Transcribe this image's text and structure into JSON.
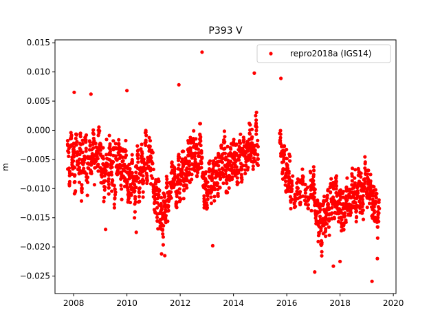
{
  "chart_data": {
    "type": "scatter",
    "title": "P393 V",
    "xlabel": "",
    "ylabel": "m",
    "xlim": [
      2007.3,
      2020.1
    ],
    "ylim": [
      -0.028,
      0.0155
    ],
    "xticks": [
      2008,
      2010,
      2012,
      2014,
      2016,
      2018,
      2020
    ],
    "yticks": [
      -0.025,
      -0.02,
      -0.015,
      -0.01,
      -0.005,
      0.0,
      0.005,
      0.01,
      0.015
    ],
    "ytick_labels": [
      "−0.025",
      "−0.020",
      "−0.015",
      "−0.010",
      "−0.005",
      "0.000",
      "0.005",
      "0.010",
      "0.015"
    ],
    "grid": false,
    "legend_position": "top-right",
    "series": [
      {
        "name": "repro2018a (IGS14)",
        "color": "#ff0000",
        "marker": "circle",
        "x": [
          2007.8,
          2007.85,
          2007.9,
          2007.95,
          2008.0,
          2008.05,
          2008.1,
          2008.15,
          2008.2,
          2008.25,
          2008.3,
          2008.35,
          2008.4,
          2008.45,
          2008.5,
          2008.55,
          2008.6,
          2008.65,
          2008.7,
          2008.75,
          2008.8,
          2008.85,
          2008.9,
          2008.95,
          2009.0,
          2009.05,
          2009.1,
          2009.15,
          2009.2,
          2009.25,
          2009.3,
          2009.35,
          2009.4,
          2009.45,
          2009.5,
          2009.55,
          2009.6,
          2009.65,
          2009.7,
          2009.75,
          2009.8,
          2009.85,
          2009.9,
          2009.95,
          2010.0,
          2010.05,
          2010.1,
          2010.15,
          2010.2,
          2010.25,
          2010.3,
          2010.35,
          2010.4,
          2010.45,
          2010.5,
          2010.55,
          2010.6,
          2010.65,
          2010.7,
          2010.75,
          2010.8,
          2010.85,
          2010.9,
          2010.95,
          2011.0,
          2011.05,
          2011.1,
          2011.15,
          2011.2,
          2011.25,
          2011.3,
          2011.35,
          2011.4,
          2011.45,
          2011.5,
          2011.55,
          2011.6,
          2011.65,
          2011.7,
          2011.75,
          2011.8,
          2011.85,
          2011.9,
          2011.95,
          2012.0,
          2012.05,
          2012.1,
          2012.15,
          2012.2,
          2012.25,
          2012.3,
          2012.35,
          2012.4,
          2012.45,
          2012.5,
          2012.55,
          2012.6,
          2012.65,
          2012.7,
          2012.75,
          2012.8,
          2012.85,
          2012.9,
          2012.95,
          2013.0,
          2013.05,
          2013.1,
          2013.15,
          2013.2,
          2013.25,
          2013.3,
          2013.35,
          2013.4,
          2013.45,
          2013.5,
          2013.55,
          2013.6,
          2013.65,
          2013.7,
          2013.75,
          2013.8,
          2013.85,
          2013.9,
          2013.95,
          2014.0,
          2014.05,
          2014.1,
          2014.15,
          2014.2,
          2014.25,
          2014.3,
          2014.35,
          2014.4,
          2014.45,
          2014.5,
          2014.55,
          2014.6,
          2014.65,
          2014.7,
          2014.75,
          2014.8,
          2014.85,
          2014.9,
          2015.75,
          2015.8,
          2015.85,
          2015.9,
          2015.95,
          2016.0,
          2016.05,
          2016.1,
          2016.15,
          2016.2,
          2016.3,
          2016.4,
          2016.5,
          2016.6,
          2016.7,
          2016.8,
          2016.9,
          2016.95,
          2017.0,
          2017.05,
          2017.1,
          2017.15,
          2017.2,
          2017.25,
          2017.3,
          2017.35,
          2017.4,
          2017.45,
          2017.5,
          2017.55,
          2017.6,
          2017.65,
          2017.7,
          2017.75,
          2017.8,
          2017.85,
          2017.9,
          2017.95,
          2018.0,
          2018.05,
          2018.1,
          2018.15,
          2018.2,
          2018.25,
          2018.3,
          2018.35,
          2018.4,
          2018.45,
          2018.5,
          2018.55,
          2018.6,
          2018.65,
          2018.7,
          2018.75,
          2018.8,
          2018.85,
          2018.9,
          2018.95,
          2019.0,
          2019.05,
          2019.1,
          2019.15,
          2019.2,
          2019.25,
          2019.3,
          2019.35,
          2019.4,
          2019.45
        ],
        "y": [
          -0.003,
          -0.008,
          -0.002,
          -0.006,
          -0.004,
          -0.009,
          -0.001,
          -0.005,
          -0.007,
          -0.003,
          -0.01,
          -0.004,
          -0.006,
          -0.002,
          -0.008,
          -0.005,
          -0.003,
          -0.007,
          -0.004,
          -0.001,
          -0.006,
          -0.003,
          -0.005,
          -0.002,
          -0.004,
          -0.008,
          -0.006,
          -0.01,
          -0.007,
          -0.005,
          -0.009,
          -0.003,
          -0.006,
          -0.008,
          -0.004,
          -0.011,
          -0.005,
          -0.007,
          -0.003,
          -0.006,
          -0.009,
          -0.005,
          -0.007,
          -0.004,
          -0.008,
          -0.011,
          -0.007,
          -0.01,
          -0.006,
          -0.009,
          -0.012,
          -0.008,
          -0.005,
          -0.01,
          -0.007,
          -0.004,
          -0.009,
          -0.006,
          -0.003,
          -0.008,
          -0.005,
          -0.002,
          -0.007,
          -0.006,
          -0.009,
          -0.012,
          -0.01,
          -0.014,
          -0.011,
          -0.015,
          -0.013,
          -0.016,
          -0.012,
          -0.014,
          -0.01,
          -0.013,
          -0.011,
          -0.009,
          -0.007,
          -0.01,
          -0.008,
          -0.012,
          -0.009,
          -0.006,
          -0.01,
          -0.007,
          -0.005,
          -0.009,
          -0.006,
          -0.008,
          -0.004,
          -0.007,
          -0.003,
          -0.006,
          -0.002,
          -0.005,
          -0.003,
          -0.007,
          -0.004,
          -0.001,
          -0.005,
          -0.008,
          -0.011,
          -0.009,
          -0.012,
          -0.01,
          -0.007,
          -0.011,
          -0.008,
          -0.006,
          -0.009,
          -0.007,
          -0.01,
          -0.005,
          -0.008,
          -0.004,
          -0.007,
          -0.003,
          -0.006,
          -0.009,
          -0.005,
          -0.008,
          -0.004,
          -0.007,
          -0.003,
          -0.006,
          -0.004,
          -0.008,
          -0.005,
          -0.003,
          -0.007,
          -0.004,
          -0.002,
          -0.006,
          -0.003,
          -0.005,
          -0.001,
          -0.004,
          -0.002,
          -0.005,
          -0.003,
          0.001,
          -0.004,
          -0.001,
          -0.003,
          -0.006,
          -0.004,
          -0.008,
          -0.005,
          -0.009,
          -0.007,
          -0.011,
          -0.009,
          -0.012,
          -0.01,
          -0.011,
          -0.008,
          -0.01,
          -0.012,
          -0.009,
          -0.011,
          -0.008,
          -0.012,
          -0.015,
          -0.013,
          -0.017,
          -0.014,
          -0.019,
          -0.016,
          -0.013,
          -0.017,
          -0.014,
          -0.012,
          -0.015,
          -0.011,
          -0.014,
          -0.01,
          -0.013,
          -0.009,
          -0.012,
          -0.014,
          -0.011,
          -0.015,
          -0.012,
          -0.016,
          -0.013,
          -0.01,
          -0.014,
          -0.011,
          -0.013,
          -0.009,
          -0.012,
          -0.01,
          -0.014,
          -0.011,
          -0.008,
          -0.012,
          -0.009,
          -0.013,
          -0.01,
          -0.007,
          -0.011,
          -0.008,
          -0.012,
          -0.009,
          -0.013,
          -0.011,
          -0.014,
          -0.012,
          -0.016,
          -0.014
        ]
      }
    ],
    "outliers": {
      "x": [
        2012.82,
        2011.95,
        2014.78,
        2010.0,
        2008.02,
        2008.65,
        2015.78,
        2013.22,
        2019.2,
        2017.05,
        2011.3,
        2011.42,
        2010.35,
        2017.75,
        2018.0,
        2009.2,
        2019.4
      ],
      "y": [
        0.0134,
        0.0078,
        0.0098,
        0.0068,
        0.0065,
        0.0062,
        0.0089,
        -0.0198,
        -0.0259,
        -0.0243,
        -0.0212,
        -0.0215,
        -0.0175,
        -0.0233,
        -0.0225,
        -0.017,
        -0.022
      ]
    }
  }
}
